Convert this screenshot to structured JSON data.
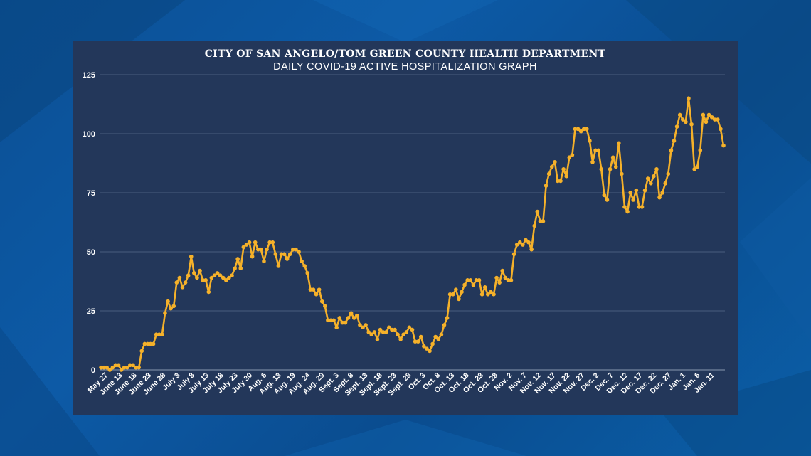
{
  "chart_data": {
    "type": "line",
    "title": "CITY OF SAN ANGELO/TOM GREEN COUNTY HEALTH DEPARTMENT",
    "subtitle": "DAILY COVID-19 ACTIVE HOSPITALIZATION GRAPH",
    "xlabel": "",
    "ylabel": "",
    "ylim": [
      0,
      125
    ],
    "yticks": [
      0,
      25,
      50,
      75,
      100,
      125
    ],
    "grid": true,
    "x_tick_labels": [
      "May 27",
      "June 13",
      "June 18",
      "June 23",
      "June 28",
      "July 3",
      "July 8",
      "July 13",
      "July 18",
      "July 23",
      "July 30",
      "Aug. 6",
      "Aug. 13",
      "Aug. 19",
      "Aug. 24",
      "Aug. 29",
      "Sept. 3",
      "Sept. 8",
      "Sept. 13",
      "Sept. 18",
      "Sept. 23",
      "Sept. 28",
      "Oct. 3",
      "Oct. 8",
      "Oct. 13",
      "Oct. 18",
      "Oct. 23",
      "Oct. 28",
      "Nov. 2",
      "Nov. 7",
      "Nov. 12",
      "Nov. 17",
      "Nov. 22",
      "Nov. 27",
      "Dec. 2",
      "Dec. 7",
      "Dec. 12",
      "Dec. 17",
      "Dec. 22",
      "Dec. 27",
      "Jan. 1",
      "Jan. 6",
      "Jan. 11"
    ],
    "line_color": "#f5b12a",
    "values": [
      1,
      1,
      1,
      0,
      1,
      2,
      2,
      0,
      1,
      1,
      2,
      2,
      1,
      1,
      8,
      11,
      11,
      11,
      11,
      15,
      15,
      15,
      24,
      29,
      26,
      27,
      37,
      39,
      35,
      37,
      40,
      48,
      41,
      39,
      42,
      38,
      38,
      33,
      39,
      40,
      41,
      40,
      39,
      38,
      39,
      40,
      43,
      47,
      43,
      52,
      53,
      54,
      48,
      54,
      51,
      51,
      46,
      51,
      54,
      54,
      49,
      44,
      49,
      49,
      47,
      49,
      51,
      51,
      50,
      46,
      44,
      41,
      34,
      34,
      32,
      34,
      29,
      27,
      21,
      21,
      21,
      18,
      22,
      20,
      20,
      22,
      24,
      22,
      23,
      19,
      18,
      19,
      16,
      15,
      16,
      13,
      17,
      16,
      16,
      18,
      17,
      17,
      15,
      13,
      15,
      16,
      18,
      17,
      12,
      12,
      14,
      10,
      9,
      8,
      11,
      14,
      13,
      15,
      19,
      22,
      32,
      32,
      34,
      30,
      33,
      36,
      38,
      38,
      36,
      38,
      38,
      32,
      35,
      32,
      33,
      32,
      39,
      37,
      42,
      39,
      38,
      38,
      49,
      53,
      54,
      53,
      55,
      54,
      51,
      61,
      67,
      63,
      63,
      78,
      83,
      86,
      88,
      80,
      80,
      85,
      82,
      90,
      91,
      102,
      102,
      101,
      102,
      102,
      97,
      88,
      93,
      93,
      85,
      74,
      72,
      85,
      90,
      86,
      96,
      83,
      69,
      67,
      75,
      72,
      76,
      69,
      69,
      76,
      81,
      79,
      82,
      85,
      73,
      75,
      79,
      83,
      93,
      97,
      103,
      108,
      106,
      105,
      115,
      104,
      85,
      86,
      93,
      108,
      105,
      108,
      107,
      106,
      106,
      102,
      95
    ]
  }
}
